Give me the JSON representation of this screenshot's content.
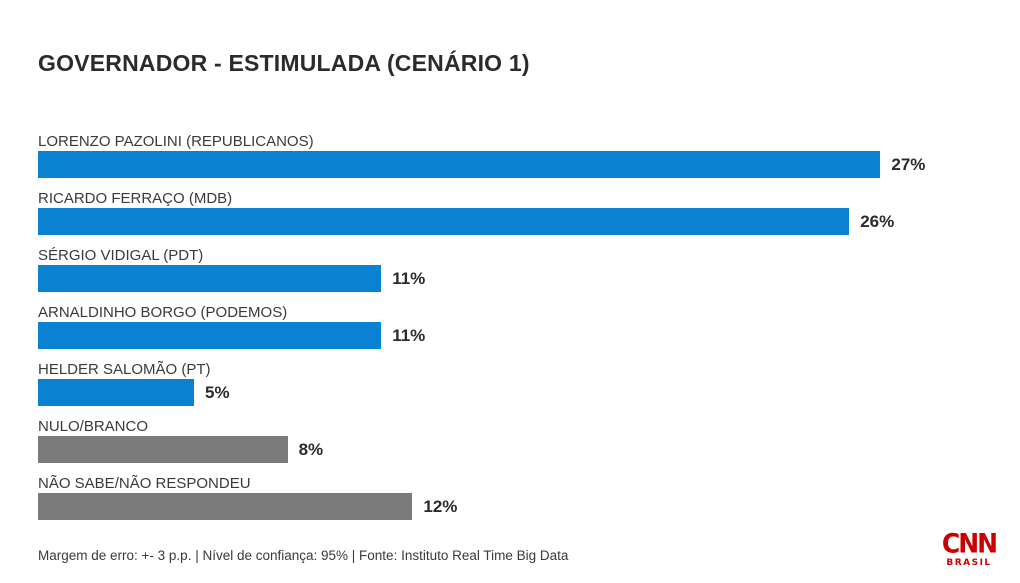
{
  "chart_data": {
    "type": "bar",
    "orientation": "horizontal",
    "title": "GOVERNADOR - ESTIMULADA (CENÁRIO 1)",
    "value_unit": "%",
    "xlim": [
      0,
      30
    ],
    "grid": false,
    "legend": "none",
    "categories": [
      "LORENZO PAZOLINI (REPUBLICANOS)",
      "RICARDO FERRAÇO (MDB)",
      "SÉRGIO VIDIGAL (PDT)",
      "ARNALDINHO BORGO (PODEMOS)",
      "HELDER SALOMÃO (PT)",
      "NULO/BRANCO",
      "NÃO SABE/NÃO RESPONDEU"
    ],
    "values": [
      27,
      26,
      11,
      11,
      5,
      8,
      12
    ],
    "bars": [
      {
        "label": "LORENZO PAZOLINI (REPUBLICANOS)",
        "value": 27,
        "display_value": "27%",
        "color": "#0a81d1"
      },
      {
        "label": "RICARDO FERRAÇO (MDB)",
        "value": 26,
        "display_value": "26%",
        "color": "#0a81d1"
      },
      {
        "label": "SÉRGIO VIDIGAL (PDT)",
        "value": 11,
        "display_value": "11%",
        "color": "#0a81d1"
      },
      {
        "label": "ARNALDINHO BORGO (PODEMOS)",
        "value": 11,
        "display_value": "11%",
        "color": "#0a81d1"
      },
      {
        "label": "HELDER SALOMÃO (PT)",
        "value": 5,
        "display_value": "5%",
        "color": "#0a81d1"
      },
      {
        "label": "NULO/BRANCO",
        "value": 8,
        "display_value": "8%",
        "color": "#7a7a7a"
      },
      {
        "label": "NÃO SABE/NÃO RESPONDEU",
        "value": 12,
        "display_value": "12%",
        "color": "#7a7a7a"
      }
    ],
    "colors": {
      "candidate_bar": "#0a81d1",
      "non_answer_bar": "#7a7a7a"
    }
  },
  "footer": {
    "note": "Margem de erro: +- 3 p.p. | Nível de confiança: 95% | Fonte: Instituto Real Time Big Data"
  },
  "logo": {
    "brand": "CNN",
    "region": "BRASIL",
    "color": "#cc0000"
  }
}
